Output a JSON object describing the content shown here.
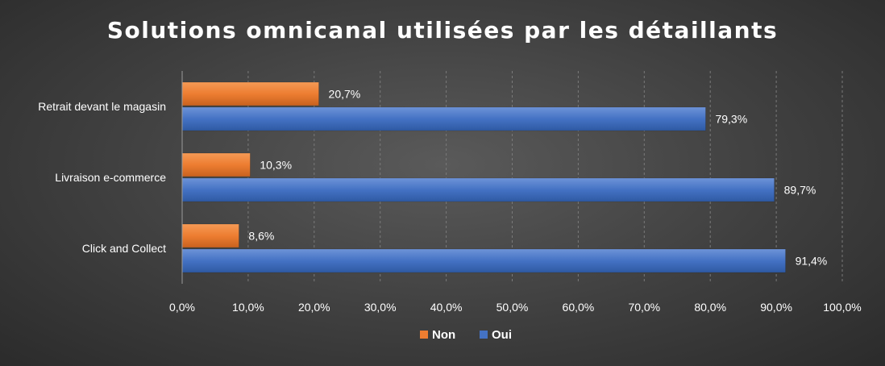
{
  "chart_data": {
    "type": "bar",
    "orientation": "horizontal",
    "title": "Solutions omnicanal utilisées par les détaillants",
    "categories": [
      "Retrait devant le magasin",
      "Livraison e-commerce",
      "Click and Collect"
    ],
    "series": [
      {
        "name": "Non",
        "color": "#ed7d31",
        "values": [
          20.7,
          10.3,
          8.6
        ],
        "labels": [
          "20,7%",
          "10,3%",
          "8,6%"
        ]
      },
      {
        "name": "Oui",
        "color": "#4472c4",
        "values": [
          79.3,
          89.7,
          91.4
        ],
        "labels": [
          "79,3%",
          "89,7%",
          "91,4%"
        ]
      }
    ],
    "xlim": [
      0,
      100
    ],
    "xticks": [
      0,
      10,
      20,
      30,
      40,
      50,
      60,
      70,
      80,
      90,
      100
    ],
    "xtick_labels": [
      "0,0%",
      "10,0%",
      "20,0%",
      "30,0%",
      "40,0%",
      "50,0%",
      "60,0%",
      "70,0%",
      "80,0%",
      "90,0%",
      "100,0%"
    ],
    "grid": true,
    "legend_position": "bottom"
  }
}
